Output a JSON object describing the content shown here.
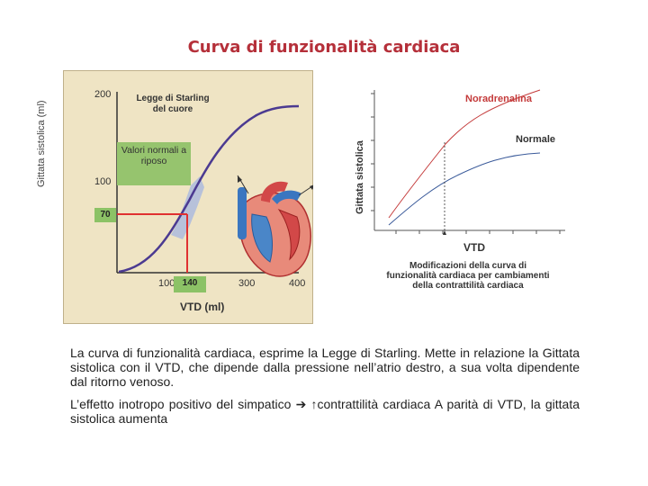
{
  "title": "Curva di funzionalità cardiaca",
  "left_chart": {
    "legend_title": "Legge di Starling del cuore",
    "ylabel": "Gittata sistolica (ml)",
    "xlabel": "VTD (ml)",
    "y_ticks": [
      "200",
      "100"
    ],
    "x_ticks": [
      "100",
      "300",
      "400"
    ],
    "highlight_y": "70",
    "highlight_x": "140",
    "info_box": "Valori normali a riposo",
    "colors": {
      "curve": "#4b3a91",
      "highlight": "#e03030",
      "box": "#8cc266",
      "panel": "#efe4c4"
    }
  },
  "right_chart": {
    "ylabel": "Gittata sistolica",
    "xlabel": "VTD",
    "series": [
      {
        "name": "Noradrenalina",
        "color": "#c43a3a"
      },
      {
        "name": "Normale",
        "color": "#3a5a9a"
      }
    ],
    "caption": "Modificazioni della curva di funzionalità cardiaca per cambiamenti della contrattilità cardiaca"
  },
  "text": {
    "p1": "La curva di funzionalità cardiaca, esprime la Legge di Starling. Mette in relazione la Gittata sistolica con il VTD, che dipende dalla pressione nell’atrio destro, a sua volta dipendente dal ritorno venoso.",
    "p2_a": "L’effetto inotropo positivo del simpatico",
    "arrow_right": "➔",
    "arrow_up": "↑",
    "p2_b": "contrattilità cardiaca A parità di VTD, la gittata sistolica aumenta"
  }
}
